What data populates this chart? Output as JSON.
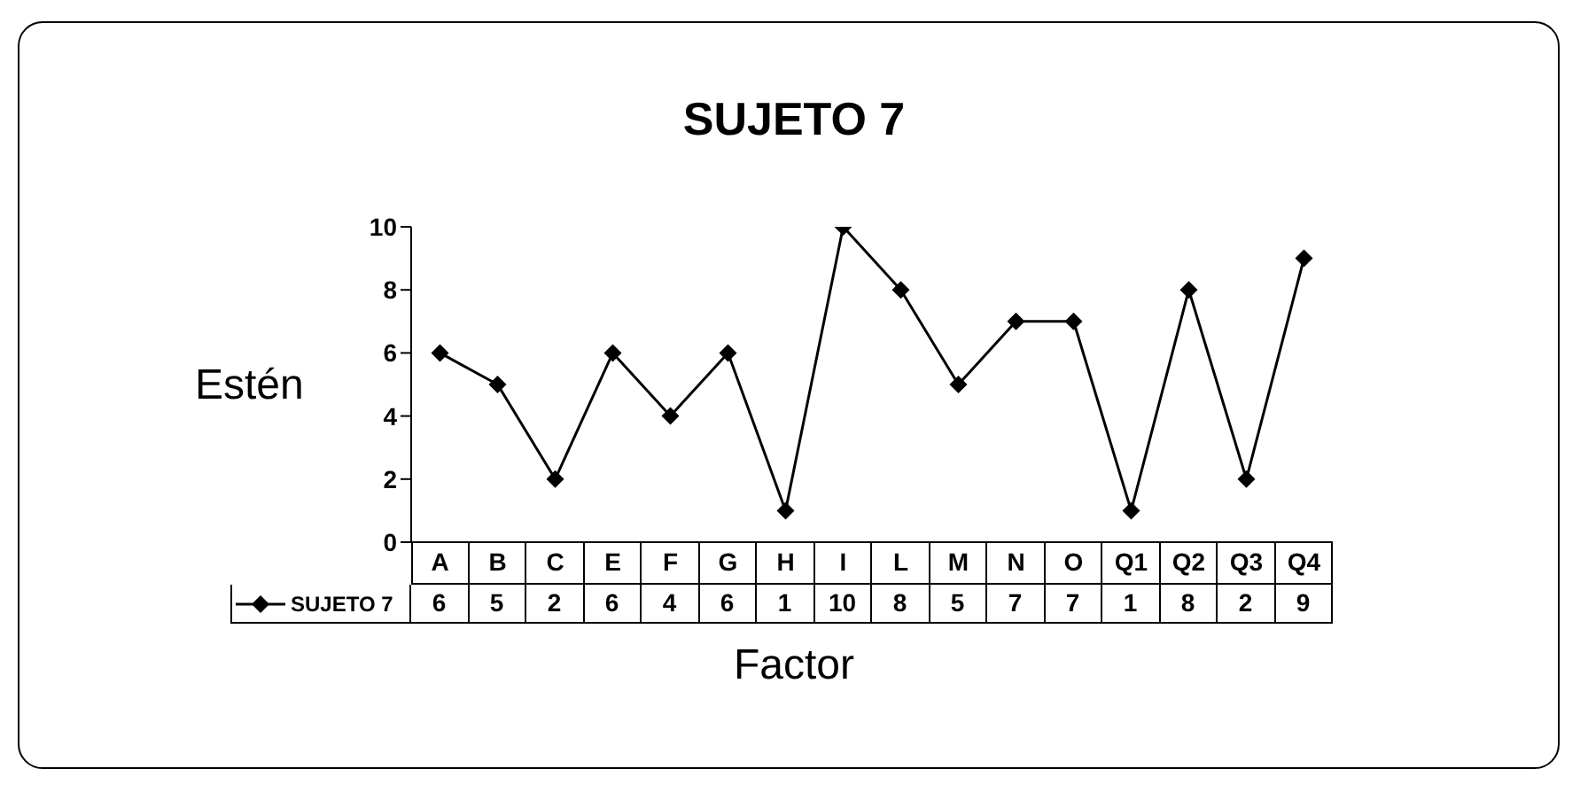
{
  "chart_data": {
    "type": "line",
    "title": "SUJETO 7",
    "xlabel": "Factor",
    "ylabel": "Estén",
    "categories": [
      "A",
      "B",
      "C",
      "E",
      "F",
      "G",
      "H",
      "I",
      "L",
      "M",
      "N",
      "O",
      "Q1",
      "Q2",
      "Q3",
      "Q4"
    ],
    "series": [
      {
        "name": "SUJETO 7",
        "color": "#000000",
        "values": [
          6,
          5,
          2,
          6,
          4,
          6,
          1,
          10,
          8,
          5,
          7,
          7,
          1,
          8,
          2,
          9
        ]
      }
    ],
    "ylim": [
      0,
      10
    ],
    "yticks": [
      0,
      2,
      4,
      6,
      8,
      10
    ],
    "marker": "diamond",
    "line_style": "solid",
    "data_labels": true,
    "legend": "bottom left"
  }
}
